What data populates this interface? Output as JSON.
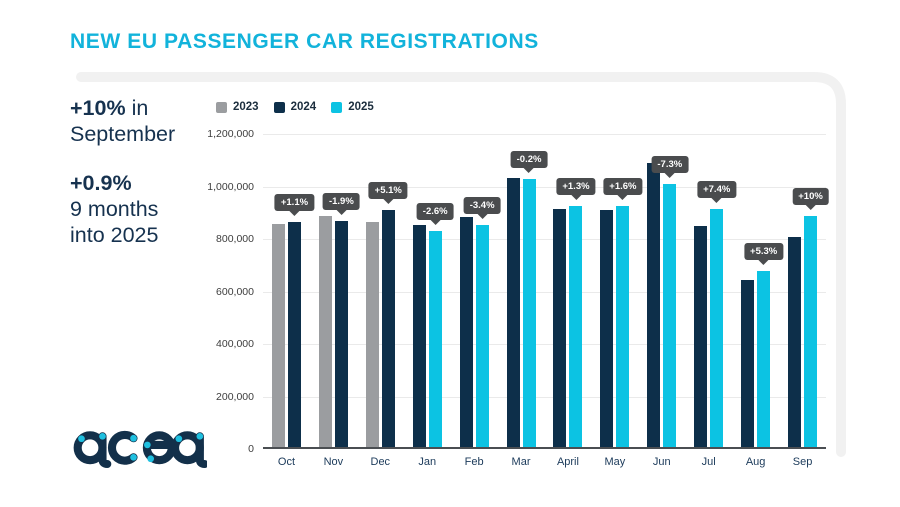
{
  "title": "NEW EU PASSENGER CAR REGISTRATIONS",
  "colors": {
    "title_cyan": "#12b3db",
    "navy_text": "#16324f",
    "frame_gray": "#f1f1f1",
    "tooltip_bg": "#4a4c4e",
    "grid": "#eaeaea",
    "axis": "#4a4e52"
  },
  "stats": {
    "stat1_value": "+10%",
    "stat1_suffix": " in",
    "stat1_line2": "September",
    "stat2_value": "+0.9%",
    "stat2_line2": "9 months",
    "stat2_line3": "into 2025"
  },
  "logo": {
    "text": "acea",
    "navy": "#13304a",
    "cyan": "#1fc0e0"
  },
  "chart_data": {
    "type": "bar",
    "title": "NEW EU PASSENGER CAR REGISTRATIONS",
    "xlabel": "",
    "ylabel": "",
    "ylim": [
      0,
      1200000
    ],
    "ytick_step": 200000,
    "grid": true,
    "legend_position": "top-left",
    "categories": [
      "Oct",
      "Nov",
      "Dec",
      "Jan",
      "Feb",
      "Mar",
      "April",
      "May",
      "Jun",
      "Jul",
      "Aug",
      "Sep"
    ],
    "series": [
      {
        "name": "2023",
        "color": "#9b9da0",
        "values": [
          857000,
          887000,
          866000,
          null,
          null,
          null,
          null,
          null,
          null,
          null,
          null,
          null
        ]
      },
      {
        "name": "2024",
        "color": "#0d2f4a",
        "values": [
          866000,
          870000,
          910000,
          853000,
          884000,
          1031000,
          913000,
          911000,
          1090000,
          851000,
          644000,
          808000
        ]
      },
      {
        "name": "2025",
        "color": "#0cc3e3",
        "values": [
          null,
          null,
          null,
          831000,
          854000,
          1029000,
          925000,
          926000,
          1010000,
          914000,
          678000,
          889000
        ]
      }
    ],
    "change_labels": [
      "+1.1%",
      "-1.9%",
      "+5.1%",
      "-2.6%",
      "-3.4%",
      "-0.2%",
      "+1.3%",
      "+1.6%",
      "-7.3%",
      "+7.4%",
      "+5.3%",
      "+10%"
    ],
    "legend": [
      "2023",
      "2024",
      "2025"
    ]
  }
}
